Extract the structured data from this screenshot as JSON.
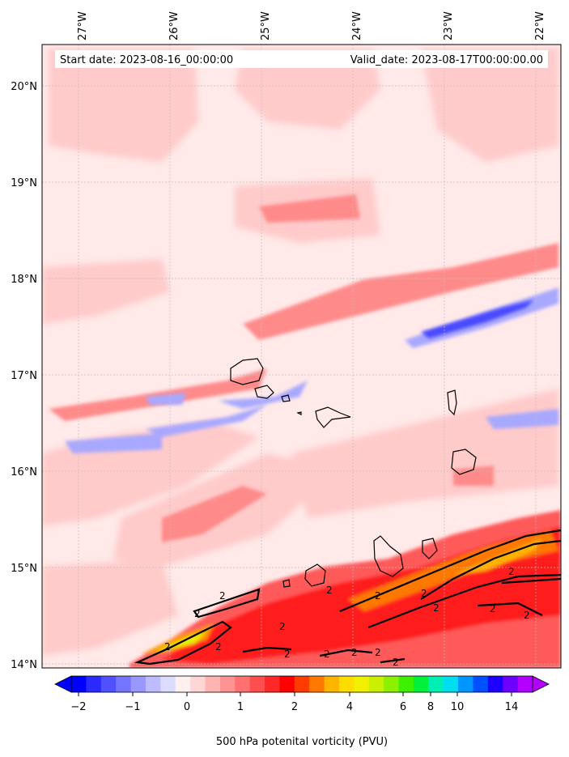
{
  "header": {
    "start_date": "Start date: 2023-08-16_00:00:00",
    "valid_date": "Valid_date: 2023-08-17T00:00:00.00"
  },
  "map": {
    "lon_labels": [
      "27°W",
      "26°W",
      "25°W",
      "24°W",
      "23°W",
      "22°W"
    ],
    "lat_labels": [
      "20°N",
      "19°N",
      "18°N",
      "17°N",
      "16°N",
      "15°N",
      "14°N"
    ],
    "contour_level_label": "2"
  },
  "colorbar": {
    "tick_labels": [
      "−2",
      "−1",
      "0",
      "1",
      "2",
      "4",
      "6",
      "8",
      "10",
      "14"
    ],
    "label": "500 hPa potenital vorticity (PVU)",
    "colors": [
      "#0000ff",
      "#2a2aff",
      "#5050ff",
      "#7474ff",
      "#9898ff",
      "#bcbcff",
      "#dcdcff",
      "#fff0f0",
      "#ffd6d6",
      "#ffb4b4",
      "#ff9292",
      "#ff7070",
      "#ff4e4e",
      "#ff2828",
      "#ff0000",
      "#ff3c00",
      "#ff7800",
      "#ffb400",
      "#ffdc00",
      "#f0f000",
      "#c8f000",
      "#8cf000",
      "#3cf000",
      "#00f03c",
      "#00f0b4",
      "#00dcf0",
      "#0096ff",
      "#0050ff",
      "#1e00ff",
      "#6e00ff",
      "#b400ff"
    ]
  }
}
